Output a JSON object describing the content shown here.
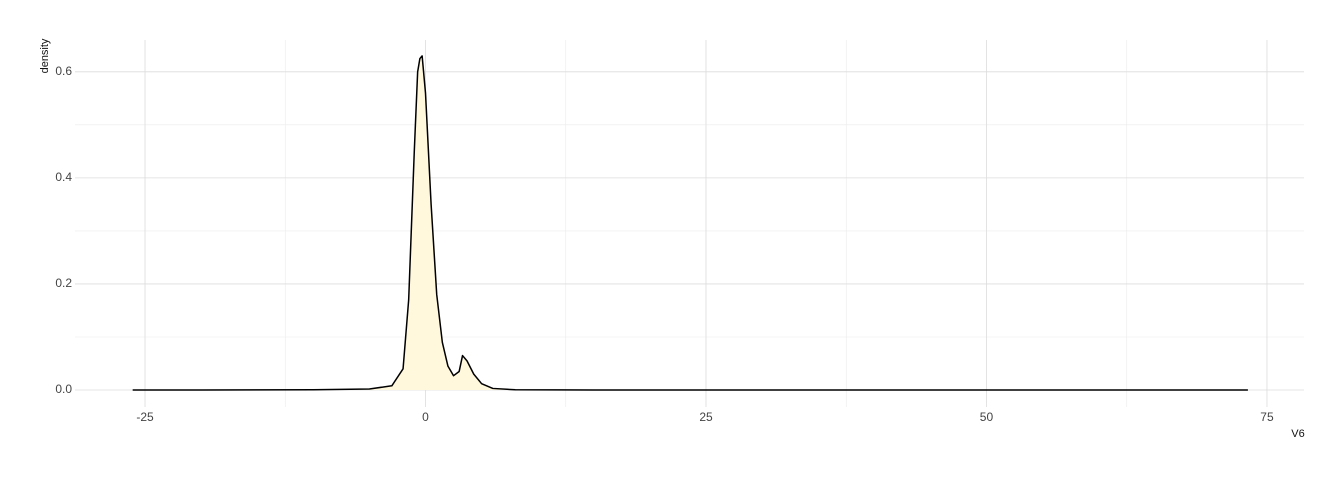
{
  "chart_data": {
    "type": "density",
    "x_label": "V6",
    "y_label": "density",
    "x": [
      -26.1,
      -20,
      -10,
      -5,
      -3,
      -2,
      -1.5,
      -1,
      -0.7,
      -0.5,
      -0.3,
      0,
      0.5,
      1,
      1.5,
      2,
      2.5,
      3,
      3.3,
      3.7,
      4.3,
      5,
      6,
      8,
      15,
      30,
      50,
      73.3
    ],
    "values": [
      0,
      0,
      0.0005,
      0.002,
      0.008,
      0.04,
      0.17,
      0.45,
      0.6,
      0.625,
      0.63,
      0.56,
      0.35,
      0.18,
      0.09,
      0.045,
      0.027,
      0.035,
      0.065,
      0.055,
      0.03,
      0.012,
      0.003,
      0.0005,
      0,
      0,
      0,
      0
    ],
    "fill": "#fff8dc",
    "color": "#000000",
    "xlim": [
      -31.24,
      78.3
    ],
    "ylim": [
      -0.032,
      0.66
    ],
    "xticks": [
      -25,
      0,
      25,
      50,
      75
    ],
    "yticks": [
      {
        "value": 0,
        "label": "0.0"
      },
      {
        "value": 0.2,
        "label": "0.2"
      },
      {
        "value": 0.4,
        "label": "0.4"
      },
      {
        "value": 0.6,
        "label": "0.6"
      }
    ],
    "x_minor_ticks": [
      -12.5,
      12.5,
      37.5,
      62.5
    ],
    "y_minor_ticks": [
      0.1,
      0.3,
      0.5
    ],
    "grid": true
  }
}
